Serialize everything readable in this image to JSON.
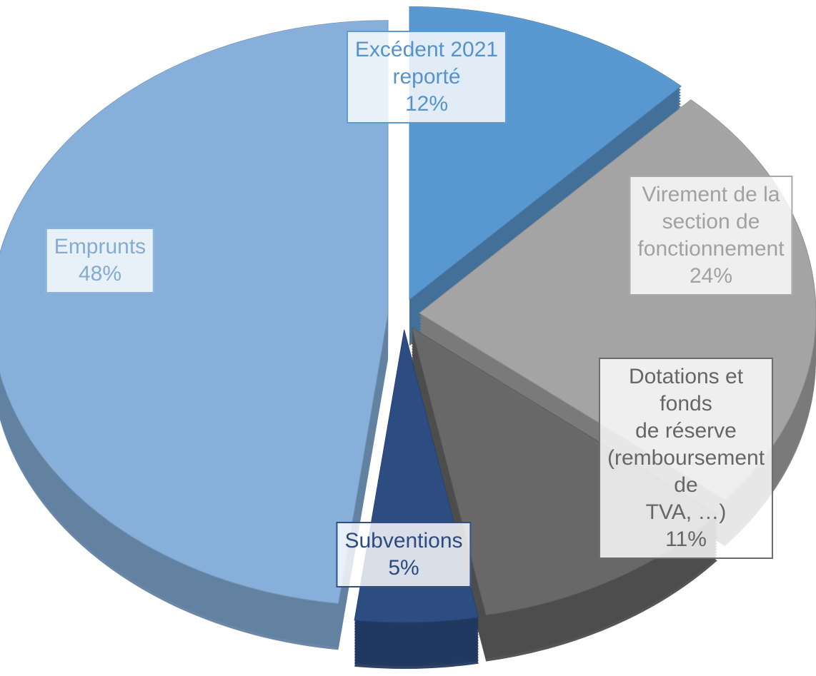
{
  "chart_data": {
    "type": "pie",
    "categories": [
      "Excédent 2021\nreporté",
      "Virement de la\nsection de\nfonctionnement",
      "Dotations et fonds\nde réserve\n(remboursement de\nTVA, …)",
      "Subventions",
      "Emprunts"
    ],
    "values": [
      12,
      24,
      11,
      5,
      48
    ],
    "value_labels": [
      "12%",
      "24%",
      "11%",
      "5%",
      "48%"
    ],
    "colors": [
      "#5b9bd5",
      "#a9a9a9",
      "#6b6b6b",
      "#2f4f86",
      "#8ab4df"
    ]
  }
}
